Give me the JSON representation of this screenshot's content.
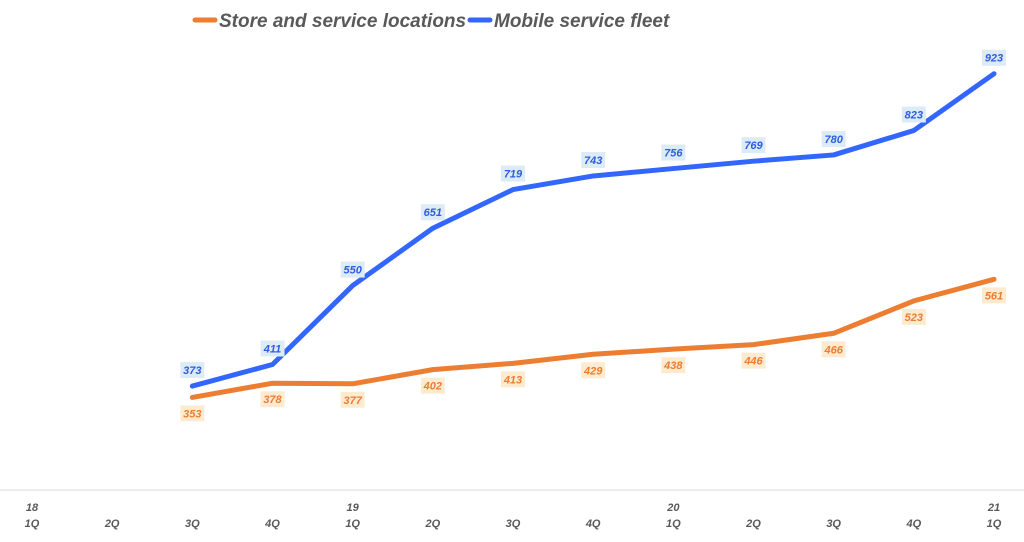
{
  "chart_data": {
    "type": "line",
    "title": "",
    "xlabel": "",
    "ylabel": "",
    "legend_position": "top-left",
    "grid": false,
    "categories": [
      {
        "year": "18",
        "quarter": "1Q"
      },
      {
        "year": "",
        "quarter": "2Q"
      },
      {
        "year": "",
        "quarter": "3Q"
      },
      {
        "year": "",
        "quarter": "4Q"
      },
      {
        "year": "19",
        "quarter": "1Q"
      },
      {
        "year": "",
        "quarter": "2Q"
      },
      {
        "year": "",
        "quarter": "3Q"
      },
      {
        "year": "",
        "quarter": "4Q"
      },
      {
        "year": "20",
        "quarter": "1Q"
      },
      {
        "year": "",
        "quarter": "2Q"
      },
      {
        "year": "",
        "quarter": "3Q"
      },
      {
        "year": "",
        "quarter": "4Q"
      },
      {
        "year": "21",
        "quarter": "1Q"
      }
    ],
    "ylim": [
      190,
      1000
    ],
    "series": [
      {
        "name": "Store and service locations",
        "color": "#ED7D31",
        "label_bg": "#FDEBD0",
        "label_color": "#ED7D31",
        "values": [
          null,
          null,
          353,
          378,
          377,
          402,
          413,
          429,
          438,
          446,
          466,
          523,
          561
        ]
      },
      {
        "name": "Mobile service fleet",
        "color": "#3366FF",
        "label_bg": "#DDEBF7",
        "label_color": "#2F5DE0",
        "values": [
          null,
          null,
          373,
          411,
          550,
          651,
          719,
          743,
          756,
          769,
          780,
          823,
          923
        ]
      }
    ]
  }
}
